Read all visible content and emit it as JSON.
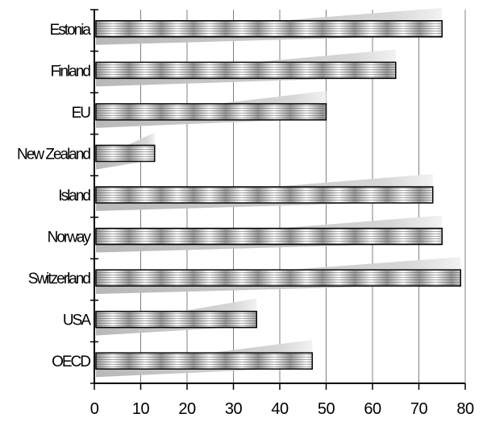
{
  "chart_data": {
    "type": "bar",
    "orientation": "horizontal",
    "categories": [
      "Estonia",
      "Finland",
      "EU",
      "New Zealand",
      "Island",
      "Norway",
      "Switzerland",
      "USA",
      "OECD"
    ],
    "values": [
      75,
      65,
      50,
      13,
      73,
      75,
      79,
      35,
      47
    ],
    "xlim": [
      0,
      80
    ],
    "xticks": [
      0,
      10,
      20,
      30,
      40,
      50,
      60,
      70,
      80
    ],
    "title": "",
    "xlabel": "",
    "ylabel": "",
    "grid": "vertical",
    "legend": "none",
    "colors": {
      "bar_fill_light": "#ffffff",
      "bar_fill_dark": "#8a8a8a",
      "bar_outline": "#000000",
      "shadow": "#bdbdbd",
      "grid": "#808080"
    }
  }
}
